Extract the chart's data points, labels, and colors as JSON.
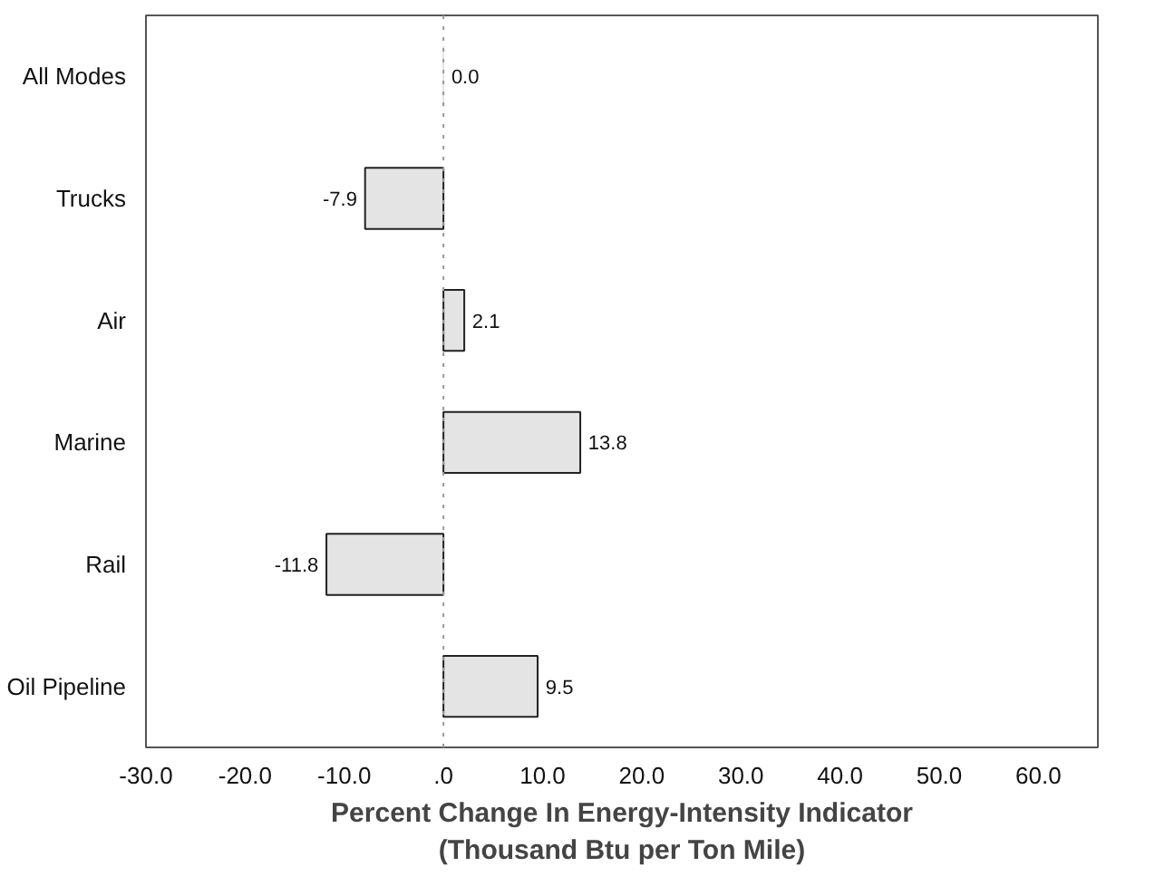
{
  "chart_data": {
    "type": "bar",
    "orientation": "horizontal",
    "categories": [
      "All Modes",
      "Trucks",
      "Air",
      "Marine",
      "Rail",
      "Oil Pipeline"
    ],
    "values": [
      0.0,
      -7.9,
      2.1,
      13.8,
      -11.8,
      9.5
    ],
    "value_labels": [
      "0.0",
      "-7.9",
      "2.1",
      "13.8",
      "-11.8",
      "9.5"
    ],
    "color": "#e4e4e4",
    "xlabel": "Percent Change In Energy-Intensity Indicator\n(Thousand Btu per Ton Mile)",
    "xlim": [
      -30,
      66
    ],
    "xticks": [
      {
        "value": -30,
        "label": "-30.0"
      },
      {
        "value": -20,
        "label": "-20.0"
      },
      {
        "value": -10,
        "label": "-10.0"
      },
      {
        "value": 0,
        "label": ".0"
      },
      {
        "value": 10,
        "label": "10.0"
      },
      {
        "value": 20,
        "label": "20.0"
      },
      {
        "value": 30,
        "label": "30.0"
      },
      {
        "value": 40,
        "label": "40.0"
      },
      {
        "value": 50,
        "label": "50.0"
      },
      {
        "value": 60,
        "label": "60.0"
      }
    ],
    "ref_lines": [
      {
        "axis": "x",
        "value": 0,
        "color": "#999999",
        "line_style": "dotted"
      }
    ],
    "grid": false
  }
}
